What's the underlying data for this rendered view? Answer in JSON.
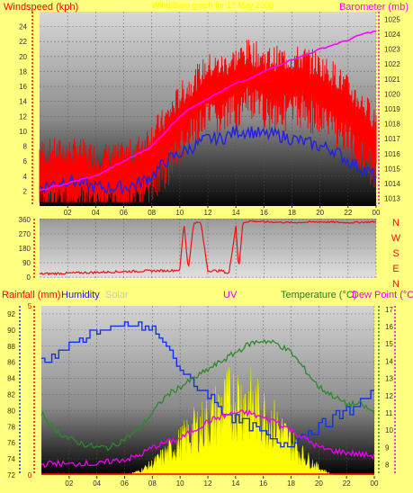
{
  "colors": {
    "page_bg": "#ffff80",
    "plot_top": "#d8d8d8",
    "plot_bottom": "#000000",
    "wind_speed": "#ff0000",
    "wind_avg": "#2222dd",
    "barometer": "#ff00ff",
    "wind_dir": "#ee1111",
    "humidity": "#1133ee",
    "temperature": "#2a8a2a",
    "dew_point": "#ee00ee",
    "uv": "#ffff00",
    "rain": "#ff0000",
    "solar_label": "#c8c8c8",
    "uv_label": "#e000e0",
    "title": "#ffff00"
  },
  "time_ticks": [
    "02",
    "04",
    "06",
    "08",
    "10",
    "12",
    "14",
    "16",
    "18",
    "20",
    "22",
    "00"
  ],
  "top_chart": {
    "header_title": "Wind/Baro graph for 17 May 2008",
    "left_label": "Windspeed (kph)",
    "right_label": "Barometer (mb)",
    "chart_data": {
      "type": "line",
      "x_hours": [
        0,
        1,
        2,
        3,
        4,
        5,
        6,
        7,
        8,
        9,
        10,
        11,
        12,
        13,
        14,
        15,
        16,
        17,
        18,
        19,
        20,
        21,
        22,
        23,
        24
      ],
      "series": [
        {
          "key": "gust",
          "values": [
            5.6,
            5.6,
            5.6,
            5.6,
            5,
            5,
            5,
            6,
            8,
            10,
            13,
            15,
            17,
            17,
            18,
            19,
            18,
            18,
            18,
            18,
            17,
            16,
            14,
            12,
            10
          ]
        },
        {
          "key": "avg",
          "values": [
            2.5,
            3,
            3.5,
            3,
            2.5,
            2.5,
            2.5,
            3,
            4,
            6,
            7,
            8,
            9,
            9,
            10,
            10,
            9.5,
            9.5,
            9,
            8.5,
            8,
            7.5,
            6,
            5,
            4
          ]
        },
        {
          "key": "baro",
          "values": [
            1013.5,
            1013.8,
            1014,
            1014.3,
            1014.5,
            1015,
            1015.5,
            1016,
            1016.5,
            1017.5,
            1018.5,
            1019.2,
            1019.7,
            1020.2,
            1020.7,
            1021,
            1021.5,
            1021.9,
            1022.3,
            1022.6,
            1023,
            1023.3,
            1023.6,
            1024,
            1024.2
          ]
        }
      ],
      "y_left": {
        "range": [
          0,
          26
        ],
        "ticks": [
          2,
          4,
          6,
          8,
          10,
          12,
          14,
          16,
          18,
          20,
          22,
          24
        ]
      },
      "y_right": {
        "range": [
          1012.5,
          1025.5
        ],
        "ticks": [
          1013,
          1014,
          1015,
          1016,
          1017,
          1018,
          1019,
          1020,
          1021,
          1022,
          1023,
          1024,
          1025
        ]
      }
    }
  },
  "mid_chart": {
    "dir_letters": [
      "N",
      "W",
      "S",
      "E",
      "N"
    ],
    "chart_data": {
      "type": "line",
      "x_hours": [
        0,
        2,
        4,
        6,
        8,
        9,
        10,
        10.3,
        10.6,
        11,
        11.5,
        12,
        13,
        13.5,
        14,
        14.2,
        14.5,
        15,
        16,
        18,
        20,
        22,
        24
      ],
      "values": [
        20,
        25,
        30,
        35,
        40,
        40,
        45,
        340,
        45,
        340,
        340,
        40,
        40,
        20,
        320,
        45,
        340,
        350,
        345,
        340,
        345,
        340,
        345
      ],
      "y": {
        "range": [
          -5,
          365
        ],
        "ticks": [
          0,
          90,
          180,
          270,
          360
        ]
      }
    }
  },
  "bottom_chart": {
    "labels": {
      "rainfall": "Rainfall (mm)",
      "humidity": "Humidity",
      "solar": "Solar",
      "uv": "UV",
      "temperature": "Temperature (°C)",
      "dew_point": "Dew Point (°C)"
    },
    "chart_data": {
      "type": "line",
      "x_hours": [
        0,
        1,
        2,
        3,
        4,
        5,
        6,
        7,
        8,
        9,
        10,
        11,
        12,
        13,
        14,
        15,
        16,
        17,
        18,
        19,
        20,
        21,
        22,
        23,
        24
      ],
      "series": [
        {
          "key": "humidity",
          "values": [
            86,
            87,
            88,
            89,
            90,
            90,
            90.5,
            90.5,
            90,
            88,
            85,
            83,
            82,
            80,
            79,
            78,
            77,
            76,
            76,
            77,
            78,
            79,
            80,
            81,
            82
          ]
        },
        {
          "key": "temperature",
          "values": [
            11,
            10,
            9.5,
            9.2,
            9,
            9,
            9.5,
            10,
            11,
            12,
            12.5,
            13,
            13.5,
            14,
            14.5,
            15,
            15.2,
            15,
            14.5,
            13.5,
            12.5,
            12,
            11.5,
            11.5,
            11
          ]
        },
        {
          "key": "dew_point",
          "values": [
            8,
            8.1,
            8,
            8.1,
            8,
            8.2,
            8.3,
            8.5,
            9,
            9.3,
            9.5,
            10,
            10.5,
            10.8,
            11,
            11,
            10.7,
            10.5,
            10,
            9.5,
            9,
            8.8,
            8.7,
            8.6,
            8.5
          ]
        },
        {
          "key": "uv",
          "values": [
            0,
            0,
            0,
            0,
            0,
            0,
            0,
            0.2,
            0.6,
            1.2,
            1.8,
            2.5,
            3,
            3.8,
            4.3,
            4,
            3.4,
            2.7,
            1.8,
            1,
            0.4,
            0,
            0,
            0,
            0
          ]
        }
      ],
      "y_humidity": {
        "range": [
          72,
          93
        ],
        "ticks": [
          72,
          74,
          76,
          78,
          80,
          82,
          84,
          86,
          88,
          90,
          92
        ]
      },
      "y_rain": {
        "range": [
          0,
          5
        ],
        "ticks": [
          0,
          5
        ]
      },
      "y_temp": {
        "range": [
          7.4,
          17.2
        ],
        "ticks": [
          8,
          9,
          10,
          11,
          12,
          13,
          14,
          15,
          16,
          17
        ]
      }
    }
  }
}
